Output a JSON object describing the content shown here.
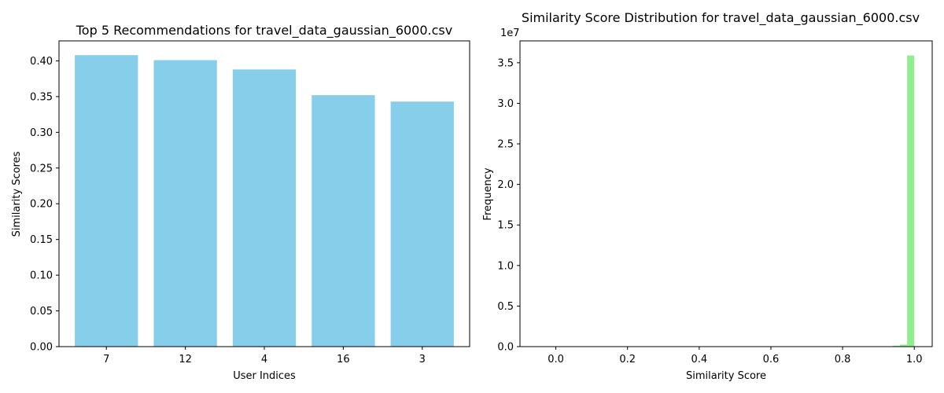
{
  "chart_data": [
    {
      "type": "bar",
      "title": "Top 5 Recommendations for travel_data_gaussian_6000.csv",
      "xlabel": "User Indices",
      "ylabel": "Similarity Scores",
      "categories": [
        "7",
        "12",
        "4",
        "16",
        "3"
      ],
      "values": [
        0.408,
        0.401,
        0.388,
        0.352,
        0.343
      ],
      "ylim": [
        0,
        0.428
      ],
      "yticks": [
        0.0,
        0.05,
        0.1,
        0.15,
        0.2,
        0.25,
        0.3,
        0.35,
        0.4
      ],
      "ytick_labels": [
        "0.00",
        "0.05",
        "0.10",
        "0.15",
        "0.20",
        "0.25",
        "0.30",
        "0.35",
        "0.40"
      ],
      "color": "#87ceeb",
      "grid": false
    },
    {
      "type": "bar",
      "subtype": "histogram",
      "title": "Similarity Score Distribution for travel_data_gaussian_6000.csv",
      "xlabel": "Similarity Score",
      "ylabel": "Frequency",
      "offset_label": "1e7",
      "xlim": [
        -0.1,
        1.05
      ],
      "ylim": [
        0,
        3.77
      ],
      "xticks": [
        0.0,
        0.2,
        0.4,
        0.6,
        0.8,
        1.0
      ],
      "xtick_labels": [
        "0.0",
        "0.2",
        "0.4",
        "0.6",
        "0.8",
        "1.0"
      ],
      "yticks": [
        0.0,
        0.5,
        1.0,
        1.5,
        2.0,
        2.5,
        3.0,
        3.5
      ],
      "ytick_labels": [
        "0.0",
        "0.5",
        "1.0",
        "1.5",
        "2.0",
        "2.5",
        "3.0",
        "3.5"
      ],
      "bins": [
        {
          "start": 0.94,
          "end": 0.96,
          "value": 0.012
        },
        {
          "start": 0.96,
          "end": 0.98,
          "value": 0.025
        },
        {
          "start": 0.98,
          "end": 1.0,
          "value": 3.59
        }
      ],
      "color": "#90ee90",
      "grid": false
    }
  ]
}
